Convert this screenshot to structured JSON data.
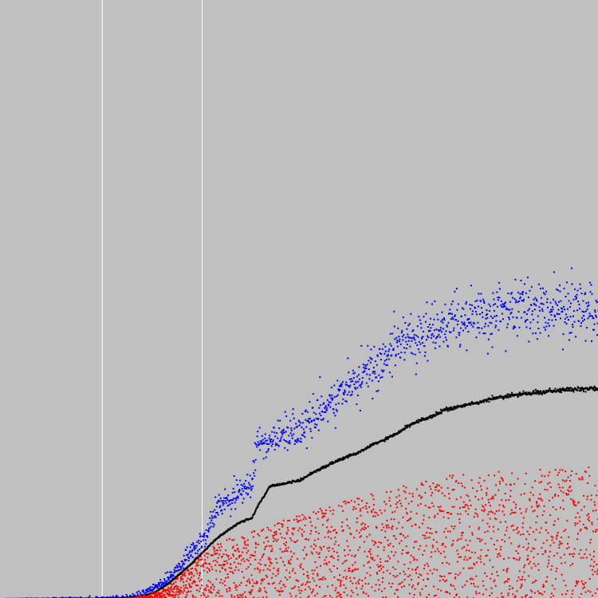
{
  "chart_data": {
    "type": "scatter",
    "title": "",
    "xlabel": "",
    "ylabel": "",
    "grid": false,
    "legend": "none",
    "background_color": "#c0c0c0",
    "xlim": [
      0,
      1
    ],
    "ylim": [
      0,
      1
    ],
    "vertical_lines": {
      "x": [
        0.171,
        0.338
      ],
      "color": "#ffffff"
    },
    "series": [
      {
        "color": "#0000ff",
        "points": [
          [
            0.0,
            0.0
          ],
          [
            0.05,
            0.0
          ],
          [
            0.1,
            0.0
          ],
          [
            0.15,
            0.0
          ],
          [
            0.2,
            0.001
          ],
          [
            0.22,
            0.003
          ],
          [
            0.24,
            0.008
          ],
          [
            0.26,
            0.02
          ],
          [
            0.28,
            0.035
          ],
          [
            0.3,
            0.058
          ],
          [
            0.32,
            0.078
          ],
          [
            0.34,
            0.1
          ],
          [
            0.36,
            0.152
          ],
          [
            0.38,
            0.16
          ],
          [
            0.4,
            0.178
          ],
          [
            0.42,
            0.192
          ],
          [
            0.43,
            0.258
          ],
          [
            0.45,
            0.262
          ],
          [
            0.48,
            0.272
          ],
          [
            0.5,
            0.285
          ],
          [
            0.52,
            0.3
          ],
          [
            0.54,
            0.318
          ],
          [
            0.56,
            0.333
          ],
          [
            0.58,
            0.35
          ],
          [
            0.6,
            0.368
          ],
          [
            0.62,
            0.383
          ],
          [
            0.64,
            0.398
          ],
          [
            0.66,
            0.42
          ],
          [
            0.68,
            0.435
          ],
          [
            0.7,
            0.44
          ],
          [
            0.72,
            0.45
          ],
          [
            0.74,
            0.457
          ],
          [
            0.76,
            0.465
          ],
          [
            0.78,
            0.47
          ],
          [
            0.8,
            0.475
          ],
          [
            0.82,
            0.478
          ],
          [
            0.84,
            0.482
          ],
          [
            0.86,
            0.483
          ],
          [
            0.88,
            0.484
          ],
          [
            0.9,
            0.484
          ],
          [
            0.92,
            0.485
          ],
          [
            0.94,
            0.485
          ],
          [
            0.96,
            0.486
          ],
          [
            0.98,
            0.487
          ],
          [
            1.0,
            0.488
          ]
        ],
        "spread": [
          [
            0.0,
            0.0
          ],
          [
            0.2,
            0.002
          ],
          [
            0.3,
            0.006
          ],
          [
            0.36,
            0.01
          ],
          [
            0.44,
            0.014
          ],
          [
            0.6,
            0.02
          ],
          [
            0.75,
            0.022
          ],
          [
            1.0,
            0.024
          ]
        ],
        "count": 1500
      },
      {
        "color": "#000000",
        "points": [
          [
            0.0,
            0.0
          ],
          [
            0.05,
            0.0
          ],
          [
            0.1,
            0.0
          ],
          [
            0.15,
            0.0
          ],
          [
            0.2,
            0.001
          ],
          [
            0.22,
            0.002
          ],
          [
            0.24,
            0.005
          ],
          [
            0.26,
            0.012
          ],
          [
            0.28,
            0.025
          ],
          [
            0.3,
            0.042
          ],
          [
            0.32,
            0.06
          ],
          [
            0.34,
            0.08
          ],
          [
            0.36,
            0.1
          ],
          [
            0.38,
            0.115
          ],
          [
            0.4,
            0.128
          ],
          [
            0.42,
            0.135
          ],
          [
            0.43,
            0.155
          ],
          [
            0.45,
            0.188
          ],
          [
            0.48,
            0.194
          ],
          [
            0.5,
            0.198
          ],
          [
            0.52,
            0.21
          ],
          [
            0.54,
            0.22
          ],
          [
            0.56,
            0.23
          ],
          [
            0.58,
            0.238
          ],
          [
            0.6,
            0.245
          ],
          [
            0.62,
            0.257
          ],
          [
            0.64,
            0.266
          ],
          [
            0.66,
            0.275
          ],
          [
            0.68,
            0.288
          ],
          [
            0.7,
            0.298
          ],
          [
            0.72,
            0.305
          ],
          [
            0.74,
            0.315
          ],
          [
            0.76,
            0.32
          ],
          [
            0.78,
            0.324
          ],
          [
            0.8,
            0.328
          ],
          [
            0.82,
            0.334
          ],
          [
            0.84,
            0.338
          ],
          [
            0.86,
            0.341
          ],
          [
            0.88,
            0.343
          ],
          [
            0.9,
            0.345
          ],
          [
            0.92,
            0.347
          ],
          [
            0.94,
            0.349
          ],
          [
            0.96,
            0.35
          ],
          [
            0.98,
            0.351
          ],
          [
            1.0,
            0.352
          ]
        ],
        "spread": [
          [
            0.0,
            0.0
          ],
          [
            1.0,
            0.002
          ]
        ],
        "count": 1500
      },
      {
        "color": "#ff0000",
        "points": [
          [
            0.0,
            0.0
          ],
          [
            0.2,
            0.0
          ],
          [
            0.22,
            0.001
          ],
          [
            0.25,
            0.008
          ],
          [
            0.28,
            0.02
          ],
          [
            0.3,
            0.04
          ],
          [
            0.34,
            0.08
          ],
          [
            0.38,
            0.1
          ],
          [
            0.42,
            0.112
          ],
          [
            0.46,
            0.128
          ],
          [
            0.5,
            0.14
          ],
          [
            0.54,
            0.154
          ],
          [
            0.58,
            0.166
          ],
          [
            0.62,
            0.178
          ],
          [
            0.66,
            0.186
          ],
          [
            0.7,
            0.196
          ],
          [
            0.74,
            0.205
          ],
          [
            0.78,
            0.21
          ],
          [
            0.82,
            0.213
          ],
          [
            0.86,
            0.215
          ],
          [
            0.9,
            0.218
          ],
          [
            1.0,
            0.22
          ]
        ],
        "min": 0.0,
        "count": 2500
      }
    ]
  }
}
